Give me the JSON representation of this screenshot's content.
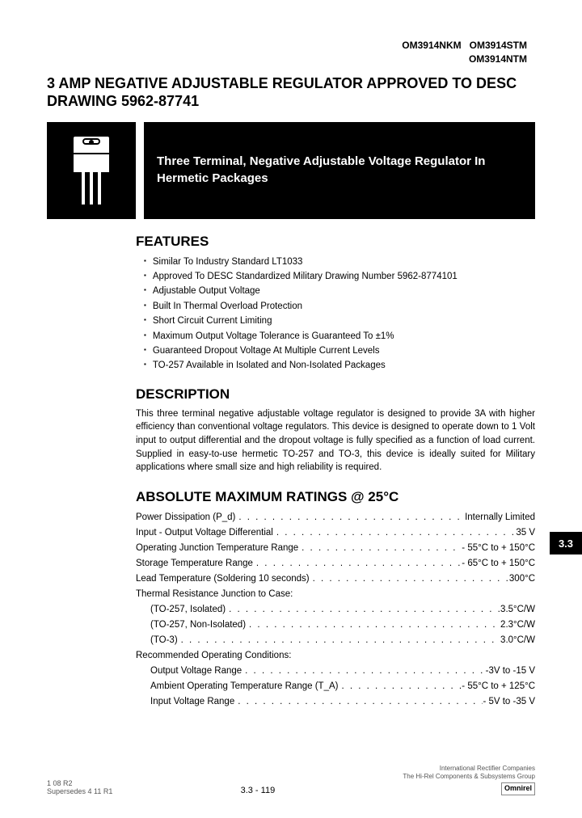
{
  "header": {
    "part_row1": "OM3914NKM   OM3914STM",
    "part_row2": "OM3914NTM"
  },
  "title": "3 AMP NEGATIVE ADJUSTABLE REGULATOR APPROVED TO DESC DRAWING 5962-87741",
  "hero_subtitle": "Three Terminal, Negative Adjustable Voltage Regulator In Hermetic Packages",
  "sections": {
    "features_title": "FEATURES",
    "description_title": "DESCRIPTION",
    "ratings_title": "ABSOLUTE MAXIMUM RATINGS @ 25°C"
  },
  "features": [
    "Similar To Industry Standard LT1033",
    "Approved To DESC Standardized Military Drawing Number 5962-8774101",
    "Adjustable Output Voltage",
    "Built In Thermal Overload Protection",
    "Short Circuit Current Limiting",
    "Maximum Output Voltage Tolerance is Guaranteed To ±1%",
    "Guaranteed Dropout Voltage At Multiple Current Levels",
    "TO-257 Available in Isolated and Non-Isolated Packages"
  ],
  "description": "This three terminal negative adjustable voltage regulator is designed to provide 3A with higher efficiency than conventional voltage regulators.  This device is designed to operate down to 1 Volt input to output differential and the dropout voltage is fully specified as a function of load current.  Supplied in easy-to-use hermetic TO-257 and TO-3, this device is ideally suited for Military applications where small size and high reliability is required.",
  "ratings": [
    {
      "label": "Power Dissipation (P_d)",
      "value": "Internally Limited",
      "indent": 0
    },
    {
      "label": "Input - Output Voltage Differential",
      "value": "35 V",
      "indent": 0
    },
    {
      "label": "Operating Junction Temperature Range",
      "value": "- 55°C to + 150°C",
      "indent": 0
    },
    {
      "label": "Storage Temperature Range",
      "value": "- 65°C to + 150°C",
      "indent": 0
    },
    {
      "label": "Lead Temperature (Soldering 10 seconds)",
      "value": "300°C",
      "indent": 0
    }
  ],
  "thermal_header": "Thermal Resistance Junction to Case:",
  "thermal": [
    {
      "label": "(TO-257, Isolated)",
      "value": "3.5°C/W"
    },
    {
      "label": "(TO-257, Non-Isolated)",
      "value": "2.3°C/W"
    },
    {
      "label": "(TO-3)",
      "value": "3.0°C/W"
    }
  ],
  "recommended_header": "Recommended Operating Conditions:",
  "recommended": [
    {
      "label": "Output Voltage Range",
      "value": "-3V to -15 V"
    },
    {
      "label": "Ambient Operating Temperature Range (T_A)",
      "value": "- 55°C to + 125°C"
    },
    {
      "label": "Input Voltage Range",
      "value": "- 5V to -35 V"
    }
  ],
  "side_tab": "3.3",
  "footer": {
    "left_line1": "1 08 R2",
    "left_line2": "Supersedes 4 11 R1",
    "center": "3.3 - 119",
    "right_line1": "International Rectifier Companies",
    "right_line2": "The Hi-Rel Components & Subsystems Group",
    "brand": "Omnirel"
  },
  "colors": {
    "black": "#000000",
    "white": "#ffffff",
    "footer_grey": "#555555"
  },
  "dot_fill": ". . . . . . . . . . . . . . . . . . . . . . . . . . . . . . . . . . . . . . . . . . . . . . . . . . . . . . . . . . . . . . . . . . . . . . . . . . . . . . . ."
}
